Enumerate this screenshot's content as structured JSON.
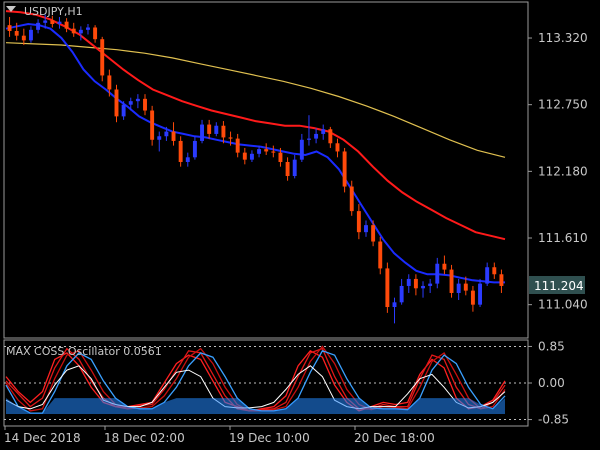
{
  "chart_data": [
    {
      "type": "candlestick",
      "title": "USDJPY,H1",
      "x_tick_labels": [
        "14 Dec 2018",
        "18 Dec 02:00",
        "19 Dec 10:00",
        "20 Dec 18:00"
      ],
      "y_tick_labels": [
        "113.320",
        "112.750",
        "112.180",
        "111.610",
        "111.040"
      ],
      "y_ticks": [
        113.32,
        112.75,
        112.18,
        111.61,
        111.04
      ],
      "ylim": [
        110.755,
        113.628
      ],
      "current_price": "111.204",
      "current_price_value": 111.204,
      "colors": {
        "bull": "#2b3bff",
        "bear": "#ff4a0a",
        "ma_blue": "#1a2bff",
        "ma_red": "#ff1a1a",
        "ma_yellow": "#e0c050",
        "price_box": "#2f4f4f"
      },
      "candles": [
        [
          113.43,
          113.5,
          113.33,
          113.38
        ],
        [
          113.38,
          113.45,
          113.3,
          113.34
        ],
        [
          113.34,
          113.4,
          113.26,
          113.3
        ],
        [
          113.3,
          113.42,
          113.28,
          113.39
        ],
        [
          113.39,
          113.48,
          113.36,
          113.45
        ],
        [
          113.45,
          113.52,
          113.4,
          113.47
        ],
        [
          113.47,
          113.51,
          113.41,
          113.44
        ],
        [
          113.44,
          113.5,
          113.4,
          113.46
        ],
        [
          113.46,
          113.49,
          113.37,
          113.4
        ],
        [
          113.4,
          113.45,
          113.33,
          113.36
        ],
        [
          113.36,
          113.42,
          113.3,
          113.39
        ],
        [
          113.39,
          113.44,
          113.35,
          113.41
        ],
        [
          113.41,
          113.43,
          113.28,
          113.31
        ],
        [
          113.31,
          113.33,
          112.95,
          113.0
        ],
        [
          113.0,
          113.05,
          112.82,
          112.88
        ],
        [
          112.88,
          112.92,
          112.6,
          112.65
        ],
        [
          112.65,
          112.78,
          112.62,
          112.75
        ],
        [
          112.75,
          112.81,
          112.7,
          112.78
        ],
        [
          112.78,
          112.84,
          112.72,
          112.8
        ],
        [
          112.8,
          112.84,
          112.66,
          112.7
        ],
        [
          112.7,
          112.74,
          112.4,
          112.45
        ],
        [
          112.45,
          112.52,
          112.35,
          112.48
        ],
        [
          112.48,
          112.56,
          112.44,
          112.52
        ],
        [
          112.52,
          112.6,
          112.4,
          112.44
        ],
        [
          112.44,
          112.48,
          112.22,
          112.26
        ],
        [
          112.26,
          112.34,
          112.22,
          112.3
        ],
        [
          112.3,
          112.48,
          112.28,
          112.44
        ],
        [
          112.44,
          112.62,
          112.42,
          112.58
        ],
        [
          112.58,
          112.62,
          112.46,
          112.5
        ],
        [
          112.5,
          112.6,
          112.48,
          112.57
        ],
        [
          112.57,
          112.61,
          112.42,
          112.47
        ],
        [
          112.47,
          112.52,
          112.4,
          112.46
        ],
        [
          112.46,
          112.5,
          112.3,
          112.34
        ],
        [
          112.34,
          112.38,
          112.24,
          112.28
        ],
        [
          112.28,
          112.36,
          112.26,
          112.33
        ],
        [
          112.33,
          112.4,
          112.3,
          112.37
        ],
        [
          112.37,
          112.42,
          112.32,
          112.35
        ],
        [
          112.35,
          112.4,
          112.3,
          112.34
        ],
        [
          112.34,
          112.38,
          112.22,
          112.26
        ],
        [
          112.26,
          112.3,
          112.1,
          112.14
        ],
        [
          112.14,
          112.32,
          112.12,
          112.28
        ],
        [
          112.28,
          112.5,
          112.26,
          112.45
        ],
        [
          112.45,
          112.66,
          112.4,
          112.46
        ],
        [
          112.46,
          112.55,
          112.42,
          112.5
        ],
        [
          112.5,
          112.58,
          112.45,
          112.54
        ],
        [
          112.54,
          112.56,
          112.38,
          112.42
        ],
        [
          112.42,
          112.46,
          112.3,
          112.35
        ],
        [
          112.35,
          112.38,
          112.0,
          112.05
        ],
        [
          112.05,
          112.1,
          111.8,
          111.84
        ],
        [
          111.84,
          111.9,
          111.6,
          111.66
        ],
        [
          111.66,
          111.76,
          111.62,
          111.72
        ],
        [
          111.72,
          111.76,
          111.54,
          111.58
        ],
        [
          111.58,
          111.62,
          111.3,
          111.35
        ],
        [
          111.35,
          111.4,
          110.97,
          111.02
        ],
        [
          111.02,
          111.1,
          110.88,
          111.06
        ],
        [
          111.06,
          111.26,
          111.04,
          111.2
        ],
        [
          111.2,
          111.3,
          111.14,
          111.26
        ],
        [
          111.26,
          111.3,
          111.12,
          111.18
        ],
        [
          111.18,
          111.24,
          111.1,
          111.2
        ],
        [
          111.2,
          111.26,
          111.14,
          111.22
        ],
        [
          111.22,
          111.44,
          111.18,
          111.39
        ],
        [
          111.39,
          111.46,
          111.3,
          111.34
        ],
        [
          111.34,
          111.38,
          111.1,
          111.14
        ],
        [
          111.14,
          111.26,
          111.08,
          111.22
        ],
        [
          111.22,
          111.28,
          111.12,
          111.16
        ],
        [
          111.16,
          111.2,
          110.98,
          111.04
        ],
        [
          111.04,
          111.26,
          111.02,
          111.22
        ],
        [
          111.22,
          111.4,
          111.2,
          111.36
        ],
        [
          111.36,
          111.4,
          111.26,
          111.3
        ],
        [
          111.3,
          111.34,
          111.14,
          111.2
        ]
      ],
      "ma_blue": [
        113.4,
        113.42,
        113.44,
        113.43,
        113.4,
        113.32,
        113.2,
        113.05,
        112.95,
        112.88,
        112.8,
        112.73,
        112.65,
        112.6,
        112.56,
        112.52,
        112.5,
        112.48,
        112.47,
        112.45,
        112.43,
        112.41,
        112.4,
        112.39,
        112.37,
        112.35,
        112.33,
        112.32,
        112.35,
        112.3,
        112.2,
        112.05,
        111.9,
        111.75,
        111.6,
        111.48,
        111.4,
        111.33,
        111.3,
        111.3,
        111.29,
        111.27,
        111.25,
        111.24,
        111.23,
        111.23
      ],
      "ma_red": [
        113.55,
        113.54,
        113.52,
        113.48,
        113.42,
        113.35,
        113.25,
        113.15,
        113.05,
        112.96,
        112.88,
        112.83,
        112.78,
        112.74,
        112.7,
        112.67,
        112.64,
        112.61,
        112.59,
        112.57,
        112.57,
        112.55,
        112.52,
        112.45,
        112.35,
        112.22,
        112.1,
        112.0,
        111.92,
        111.85,
        111.78,
        111.72,
        111.66,
        111.63,
        111.6
      ],
      "ma_yellow": [
        113.28,
        113.27,
        113.26,
        113.24,
        113.22,
        113.19,
        113.15,
        113.1,
        113.05,
        113.0,
        112.95,
        112.89,
        112.82,
        112.74,
        112.65,
        112.55,
        112.45,
        112.36,
        112.3
      ]
    },
    {
      "type": "line",
      "title": "MAX COSS Oscillator 0.0561",
      "y_tick_labels": [
        "0.85",
        "0.00",
        "-0.85"
      ],
      "y_ticks": [
        0.85,
        0.0,
        -0.85
      ],
      "ylim": [
        -1.0,
        1.0
      ],
      "colors": {
        "lines_upper": "#ff1a1a",
        "lines_lower": "#2288ff",
        "signal": "#ffffff",
        "levels": "#c0c0c0"
      },
      "series": [
        {
          "values": [
            0.15,
            -0.2,
            -0.45,
            -0.2,
            0.55,
            0.7,
            0.4,
            -0.1,
            -0.45,
            -0.55,
            -0.55,
            -0.5,
            -0.45,
            0.0,
            0.45,
            0.65,
            0.55,
            0.05,
            -0.45,
            -0.55,
            -0.65,
            -0.6,
            -0.55,
            -0.3,
            0.4,
            0.75,
            0.6,
            -0.05,
            -0.45,
            -0.65,
            -0.55,
            -0.45,
            -0.5,
            -0.45,
            0.2,
            0.55,
            0.35,
            -0.35,
            -0.6,
            -0.55,
            -0.4,
            0.05
          ]
        },
        {
          "values": [
            0.05,
            -0.25,
            -0.55,
            -0.35,
            0.35,
            0.8,
            0.55,
            0.05,
            -0.35,
            -0.55,
            -0.6,
            -0.52,
            -0.5,
            -0.15,
            0.3,
            0.75,
            0.7,
            0.2,
            -0.3,
            -0.6,
            -0.65,
            -0.62,
            -0.6,
            -0.45,
            0.15,
            0.7,
            0.8,
            0.15,
            -0.35,
            -0.6,
            -0.6,
            -0.5,
            -0.55,
            -0.55,
            0.1,
            0.65,
            0.55,
            -0.1,
            -0.5,
            -0.6,
            -0.45,
            -0.05
          ]
        },
        {
          "values": [
            0.0,
            -0.4,
            -0.65,
            -0.6,
            0.1,
            0.65,
            0.75,
            0.3,
            -0.2,
            -0.5,
            -0.6,
            -0.58,
            -0.55,
            -0.3,
            0.1,
            0.6,
            0.8,
            0.45,
            -0.1,
            -0.5,
            -0.65,
            -0.65,
            -0.62,
            -0.55,
            -0.1,
            0.5,
            0.85,
            0.45,
            -0.15,
            -0.5,
            -0.62,
            -0.55,
            -0.57,
            -0.6,
            -0.1,
            0.5,
            0.7,
            0.2,
            -0.35,
            -0.6,
            -0.55,
            -0.15
          ]
        },
        {
          "values": [
            -0.05,
            -0.55,
            -0.7,
            -0.7,
            -0.2,
            0.4,
            0.7,
            0.55,
            0.05,
            -0.35,
            -0.55,
            -0.6,
            -0.6,
            -0.45,
            -0.1,
            0.4,
            0.7,
            0.6,
            0.15,
            -0.35,
            -0.6,
            -0.65,
            -0.65,
            -0.6,
            -0.35,
            0.25,
            0.75,
            0.65,
            0.1,
            -0.35,
            -0.58,
            -0.6,
            -0.6,
            -0.62,
            -0.35,
            0.3,
            0.65,
            0.45,
            -0.1,
            -0.5,
            -0.6,
            -0.3
          ]
        },
        {
          "values": [
            -0.4,
            -0.55,
            -0.6,
            -0.5,
            -0.05,
            0.3,
            0.4,
            0.1,
            -0.4,
            -0.5,
            -0.55,
            -0.55,
            -0.45,
            -0.1,
            0.25,
            0.3,
            0.15,
            -0.35,
            -0.55,
            -0.58,
            -0.58,
            -0.55,
            -0.45,
            -0.15,
            0.2,
            0.4,
            0.15,
            -0.4,
            -0.55,
            -0.6,
            -0.55,
            -0.55,
            -0.55,
            -0.25,
            0.1,
            0.2,
            -0.1,
            -0.45,
            -0.58,
            -0.55,
            -0.45,
            -0.2
          ]
        }
      ]
    }
  ]
}
